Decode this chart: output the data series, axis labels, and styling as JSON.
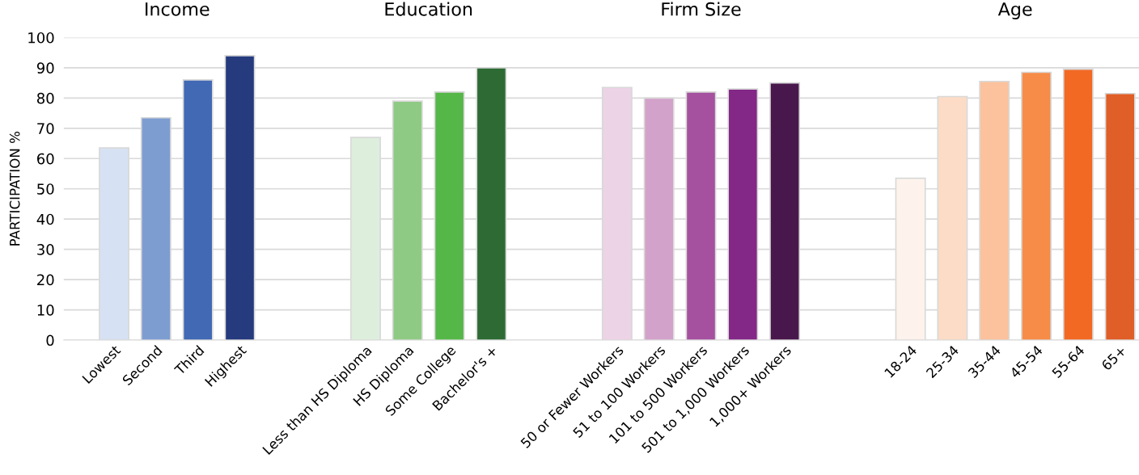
{
  "chart_data": {
    "type": "bar",
    "ylabel": "PARTICIPATION %",
    "annotations": [
      "Income",
      "Education",
      "Firm Size",
      "Age"
    ],
    "categories": [
      "Lowest",
      "Second",
      "Third",
      "Highest",
      null,
      null,
      "Less than HS Diploma",
      "HS Diploma",
      "Some College",
      "Bachelor's +",
      null,
      null,
      "50 or Fewer Workers",
      "51 to 100 Workers",
      "101 to 500 Workers",
      "501 to 1,000 Workers",
      "1,000+ Workers",
      null,
      null,
      "18-24",
      "25-34",
      "35-44",
      "45-54",
      "55-64",
      "65+"
    ],
    "values": [
      63.5,
      73.5,
      86,
      94,
      null,
      null,
      67,
      79,
      82,
      90,
      null,
      null,
      83.5,
      80,
      82,
      83,
      85,
      null,
      null,
      53.5,
      80.5,
      85.5,
      88.5,
      89.5,
      81.5
    ],
    "colors": [
      "#d6e2f3",
      "#7d9dd1",
      "#4169b4",
      "#253b7e",
      null,
      null,
      "#ddeedd",
      "#8fca84",
      "#56b749",
      "#2e6b34",
      null,
      null,
      "#ecd3e5",
      "#d3a2ca",
      "#a5519f",
      "#832887",
      "#48184c",
      null,
      null,
      "#fdf3ec",
      "#fcdcc6",
      "#fbc29d",
      "#f68c47",
      "#f26924",
      "#e05e27"
    ],
    "ylim": [
      0,
      100
    ],
    "yticks": [
      0,
      10,
      20,
      30,
      40,
      50,
      60,
      70,
      80,
      90,
      100
    ],
    "grid": "y",
    "legend": false
  }
}
